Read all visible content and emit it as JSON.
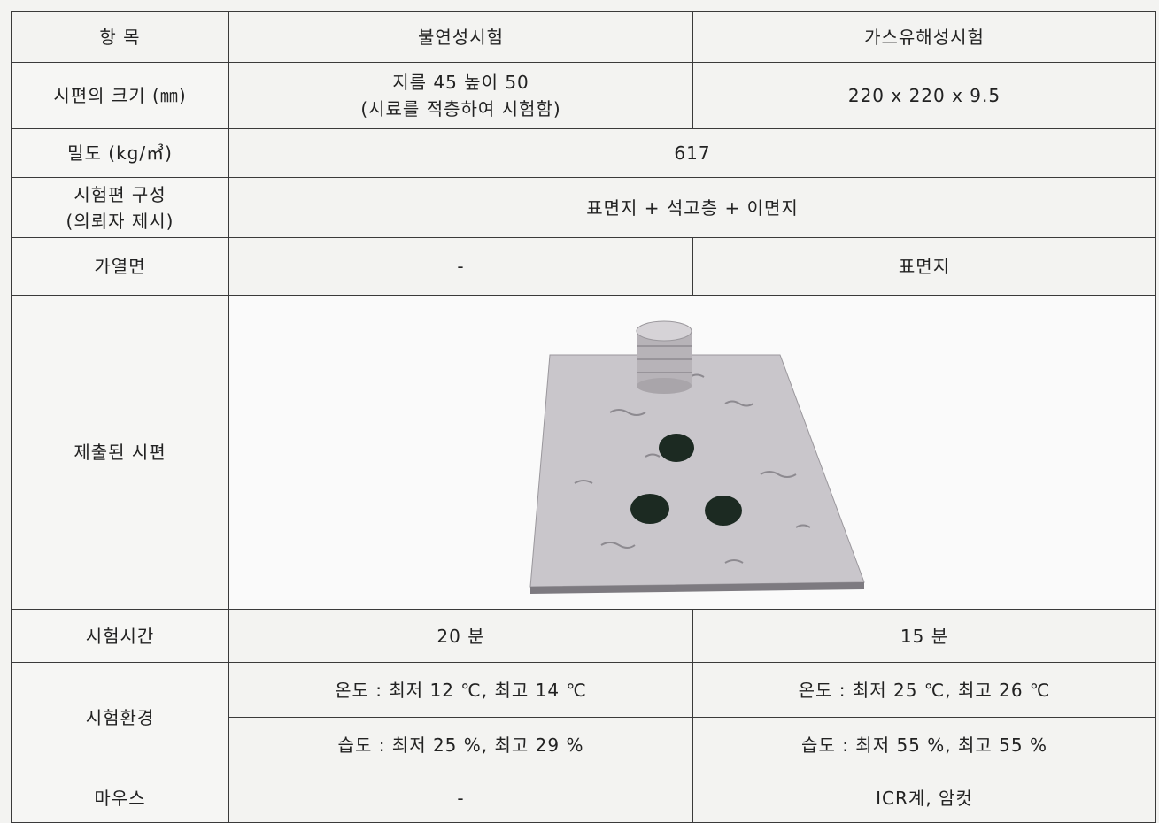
{
  "table": {
    "header": [
      "항 목",
      "불연성시험",
      "가스유해성시험"
    ],
    "rows": [
      {
        "label": "시편의 크기 (㎜)",
        "nonflammability": [
          "지름 45 높이 50",
          "(시료를 적층하여 시험함)"
        ],
        "gas_toxicity": "220 x 220 x 9.5"
      },
      {
        "label": "밀도 (kg/㎥)",
        "both": "617"
      },
      {
        "label": [
          "시험편 구성",
          "(의뢰자 제시)"
        ],
        "both": "표면지 + 석고층 + 이면지"
      },
      {
        "label": "가열면",
        "nonflammability": "-",
        "gas_toxicity": "표면지"
      },
      {
        "label": "제출된 시편"
      },
      {
        "label": "시험시간",
        "nonflammability": "20 분",
        "gas_toxicity": "15 분"
      },
      {
        "label": "시험환경",
        "nonflammability": [
          "온도 : 최저 12 ℃, 최고 14 ℃",
          "습도 : 최저 25 %, 최고 29 %"
        ],
        "gas_toxicity": [
          "온도 : 최저 25 ℃, 최고 26 ℃",
          "습도 : 최저 55 %, 최고 55 %"
        ]
      },
      {
        "label": "마우스",
        "nonflammability": "-",
        "gas_toxicity": "ICR계, 암컷"
      }
    ]
  }
}
